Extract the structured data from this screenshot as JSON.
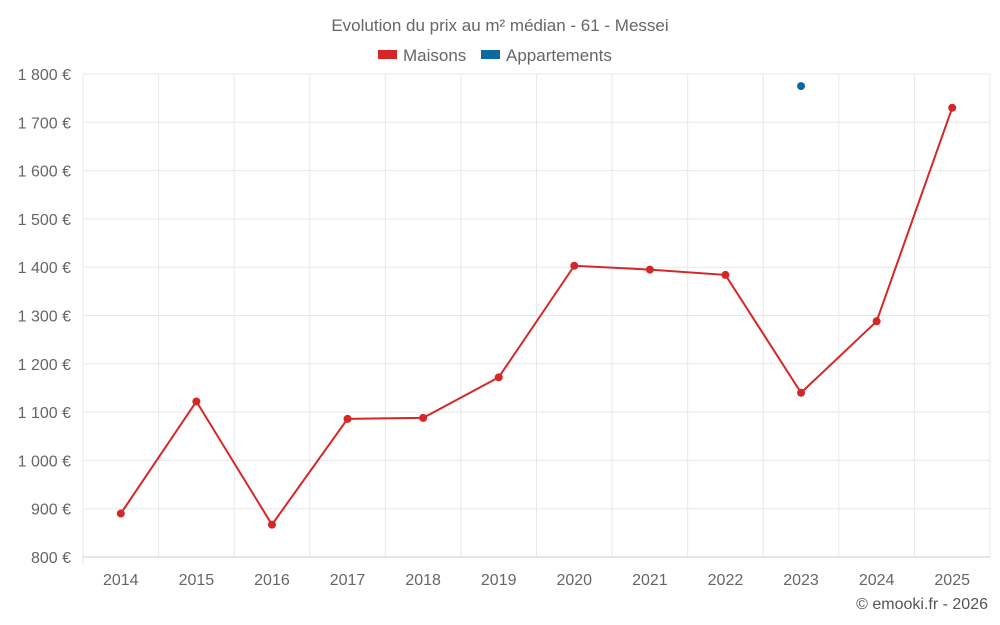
{
  "chart_data": {
    "type": "line",
    "title": "Evolution du prix au m² médian - 61 - Messei",
    "categories": [
      "2014",
      "2015",
      "2016",
      "2017",
      "2018",
      "2019",
      "2020",
      "2021",
      "2022",
      "2023",
      "2024",
      "2025"
    ],
    "series": [
      {
        "name": "Maisons",
        "color": "#d62728",
        "values": [
          890,
          1122,
          867,
          1086,
          1088,
          1172,
          1403,
          1395,
          1384,
          1140,
          1288,
          1730
        ]
      },
      {
        "name": "Appartements",
        "color": "#0a6aa1",
        "values": [
          null,
          null,
          null,
          null,
          null,
          null,
          null,
          null,
          null,
          1775,
          null,
          null
        ]
      }
    ],
    "ylim": [
      800,
      1800
    ],
    "yticks": [
      800,
      900,
      1000,
      1100,
      1200,
      1300,
      1400,
      1500,
      1600,
      1700,
      1800
    ],
    "ytick_labels": [
      "800 €",
      "900 €",
      "1 000 €",
      "1 100 €",
      "1 200 €",
      "1 300 €",
      "1 400 €",
      "1 500 €",
      "1 600 €",
      "1 700 €",
      "1 800 €"
    ],
    "xlabel": "",
    "ylabel": "",
    "grid": true,
    "legend_position": "top-center"
  },
  "footer": "© emooki.fr - 2026"
}
